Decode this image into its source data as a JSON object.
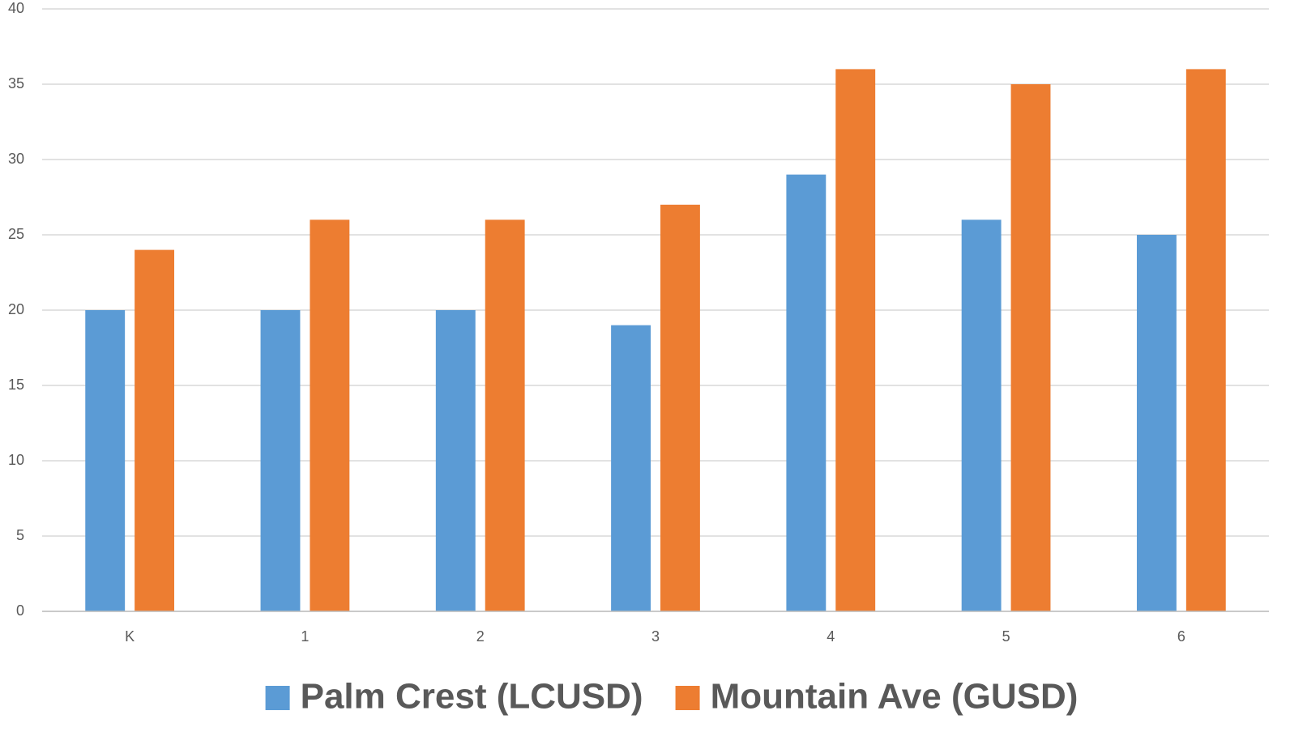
{
  "chart_data": {
    "type": "bar",
    "categories": [
      "K",
      "1",
      "2",
      "3",
      "4",
      "5",
      "6"
    ],
    "series": [
      {
        "name": "Palm Crest (LCUSD)",
        "color": "#5b9bd5",
        "values": [
          20,
          20,
          20,
          19,
          29,
          26,
          25
        ]
      },
      {
        "name": "Mountain Ave (GUSD)",
        "color": "#ed7d31",
        "values": [
          24,
          26,
          26,
          27,
          36,
          35,
          36
        ]
      }
    ],
    "ylim": [
      0,
      40
    ],
    "yticks": [
      0,
      5,
      10,
      15,
      20,
      25,
      30,
      35,
      40
    ],
    "grid": true,
    "legend": "bottom"
  }
}
